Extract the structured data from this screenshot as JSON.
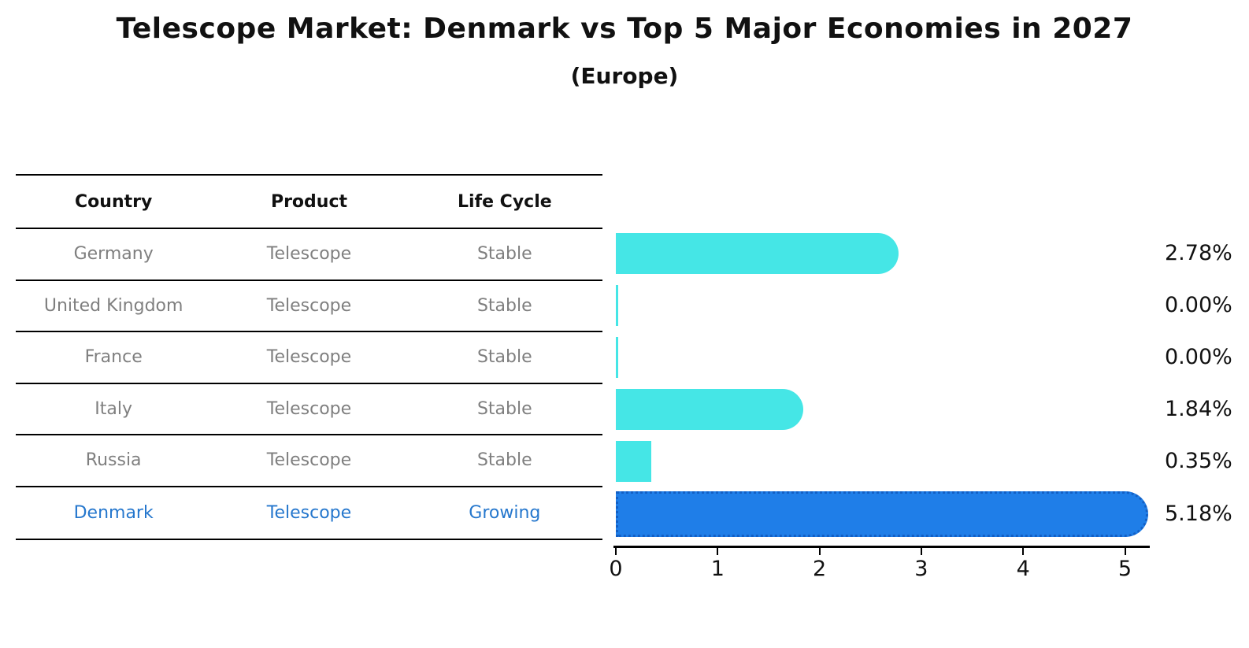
{
  "title": "Telescope Market: Denmark vs Top 5 Major Economies in 2027",
  "subtitle": "(Europe)",
  "table": {
    "headers": [
      "Country",
      "Product",
      "Life Cycle"
    ],
    "rows": [
      {
        "country": "Germany",
        "product": "Telescope",
        "life_cycle": "Stable",
        "highlight": false
      },
      {
        "country": "United Kingdom",
        "product": "Telescope",
        "life_cycle": "Stable",
        "highlight": false
      },
      {
        "country": "France",
        "product": "Telescope",
        "life_cycle": "Stable",
        "highlight": false
      },
      {
        "country": "Italy",
        "product": "Telescope",
        "life_cycle": "Stable",
        "highlight": false
      },
      {
        "country": "Russia",
        "product": "Telescope",
        "life_cycle": "Stable",
        "highlight": false
      },
      {
        "country": "Denmark",
        "product": "Telescope",
        "life_cycle": "Growing",
        "highlight": true
      }
    ]
  },
  "chart_data": {
    "type": "bar",
    "orientation": "horizontal",
    "title": "Telescope Market: Denmark vs Top 5 Major Economies in 2027 (Europe)",
    "categories": [
      "Germany",
      "United Kingdom",
      "France",
      "Italy",
      "Russia",
      "Denmark"
    ],
    "values": [
      2.78,
      0.0,
      0.0,
      1.84,
      0.35,
      5.18
    ],
    "value_labels": [
      "2.78%",
      "0.00%",
      "0.00%",
      "1.84%",
      "0.35%",
      "5.18%"
    ],
    "x_ticks": [
      0,
      1,
      2,
      3,
      4,
      5
    ],
    "x_tick_labels": [
      "0",
      "1",
      "2",
      "3",
      "4",
      "5"
    ],
    "xlim": [
      0,
      5.4
    ],
    "grid": false,
    "legend": false,
    "bar_color": "#45E6E6",
    "highlight_index": 5,
    "highlight_bar_color": "#1F7EE8",
    "highlight_border_color": "#135FC4",
    "highlight_text_color": "#2577cd",
    "text_color_muted": "#7f7f7f",
    "text_color": "#111111"
  }
}
